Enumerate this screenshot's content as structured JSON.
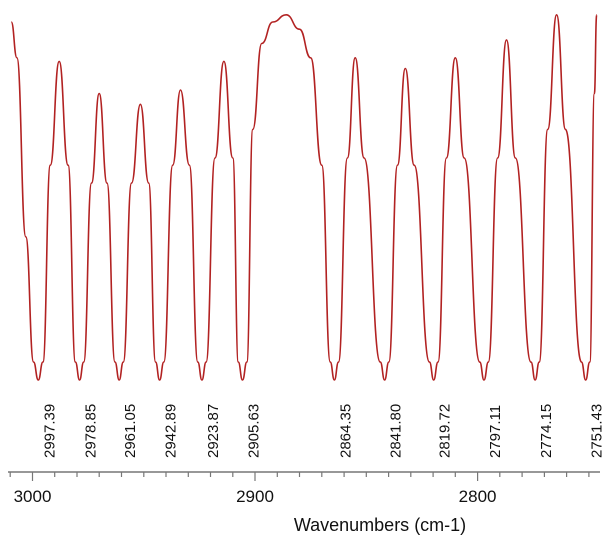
{
  "chart_data": {
    "type": "line",
    "title": "",
    "xlabel": "Wavenumbers (cm-1)",
    "ylabel": "",
    "xlim": [
      3011,
      2745
    ],
    "x_reversed": true,
    "grid": false,
    "legend": "none",
    "line_color": "#b22222",
    "x_ticks": [
      {
        "value": 3000,
        "label": "3000"
      },
      {
        "value": 2900,
        "label": "2900"
      },
      {
        "value": 2800,
        "label": "2800"
      }
    ],
    "peaks": [
      {
        "x": 2997.39,
        "label": "2997.39"
      },
      {
        "x": 2978.85,
        "label": "2978.85"
      },
      {
        "x": 2961.05,
        "label": "2961.05"
      },
      {
        "x": 2942.89,
        "label": "2942.89"
      },
      {
        "x": 2923.87,
        "label": "2923.87"
      },
      {
        "x": 2905.63,
        "label": "2905.63"
      },
      {
        "x": 2864.35,
        "label": "2864.35"
      },
      {
        "x": 2841.8,
        "label": "2841.80"
      },
      {
        "x": 2819.72,
        "label": "2819.72"
      },
      {
        "x": 2797.11,
        "label": "2797.11"
      },
      {
        "x": 2774.15,
        "label": "2774.15"
      },
      {
        "x": 2751.43,
        "label": "2751.43"
      }
    ],
    "series": [
      {
        "name": "",
        "points": [
          {
            "x": 3009.5,
            "y": 1.0
          },
          {
            "x": 3007.0,
            "y": 0.9
          },
          {
            "x": 3003.0,
            "y": 0.4
          },
          {
            "x": 2999.5,
            "y": 0.05
          },
          {
            "x": 2997.4,
            "y": 0.0
          },
          {
            "x": 2995.3,
            "y": 0.05
          },
          {
            "x": 2992.0,
            "y": 0.6
          },
          {
            "x": 2988.0,
            "y": 0.89
          },
          {
            "x": 2984.0,
            "y": 0.6
          },
          {
            "x": 2980.7,
            "y": 0.05
          },
          {
            "x": 2978.85,
            "y": 0.0
          },
          {
            "x": 2977.0,
            "y": 0.05
          },
          {
            "x": 2973.5,
            "y": 0.55
          },
          {
            "x": 2970.0,
            "y": 0.8
          },
          {
            "x": 2966.5,
            "y": 0.55
          },
          {
            "x": 2962.9,
            "y": 0.05
          },
          {
            "x": 2961.05,
            "y": 0.0
          },
          {
            "x": 2959.2,
            "y": 0.05
          },
          {
            "x": 2955.5,
            "y": 0.55
          },
          {
            "x": 2951.5,
            "y": 0.77
          },
          {
            "x": 2947.8,
            "y": 0.55
          },
          {
            "x": 2944.7,
            "y": 0.05
          },
          {
            "x": 2942.89,
            "y": 0.0
          },
          {
            "x": 2941.0,
            "y": 0.05
          },
          {
            "x": 2937.0,
            "y": 0.6
          },
          {
            "x": 2933.5,
            "y": 0.81
          },
          {
            "x": 2929.5,
            "y": 0.6
          },
          {
            "x": 2925.7,
            "y": 0.05
          },
          {
            "x": 2923.87,
            "y": 0.0
          },
          {
            "x": 2922.0,
            "y": 0.05
          },
          {
            "x": 2918.0,
            "y": 0.62
          },
          {
            "x": 2914.0,
            "y": 0.89
          },
          {
            "x": 2910.0,
            "y": 0.62
          },
          {
            "x": 2907.5,
            "y": 0.05
          },
          {
            "x": 2905.63,
            "y": 0.0
          },
          {
            "x": 2903.7,
            "y": 0.05
          },
          {
            "x": 2901.0,
            "y": 0.7
          },
          {
            "x": 2897.0,
            "y": 0.94
          },
          {
            "x": 2892.0,
            "y": 1.0
          },
          {
            "x": 2886.0,
            "y": 1.02
          },
          {
            "x": 2880.0,
            "y": 0.98
          },
          {
            "x": 2875.0,
            "y": 0.9
          },
          {
            "x": 2870.0,
            "y": 0.6
          },
          {
            "x": 2866.2,
            "y": 0.05
          },
          {
            "x": 2864.35,
            "y": 0.0
          },
          {
            "x": 2862.5,
            "y": 0.05
          },
          {
            "x": 2858.5,
            "y": 0.62
          },
          {
            "x": 2855.0,
            "y": 0.9
          },
          {
            "x": 2851.0,
            "y": 0.62
          },
          {
            "x": 2843.7,
            "y": 0.05
          },
          {
            "x": 2841.8,
            "y": 0.0
          },
          {
            "x": 2839.9,
            "y": 0.05
          },
          {
            "x": 2836.0,
            "y": 0.6
          },
          {
            "x": 2832.5,
            "y": 0.87
          },
          {
            "x": 2828.5,
            "y": 0.6
          },
          {
            "x": 2821.6,
            "y": 0.05
          },
          {
            "x": 2819.72,
            "y": 0.0
          },
          {
            "x": 2817.8,
            "y": 0.05
          },
          {
            "x": 2814.0,
            "y": 0.62
          },
          {
            "x": 2810.0,
            "y": 0.9
          },
          {
            "x": 2806.0,
            "y": 0.62
          },
          {
            "x": 2799.0,
            "y": 0.05
          },
          {
            "x": 2797.11,
            "y": 0.0
          },
          {
            "x": 2795.2,
            "y": 0.05
          },
          {
            "x": 2791.0,
            "y": 0.62
          },
          {
            "x": 2787.0,
            "y": 0.95
          },
          {
            "x": 2783.0,
            "y": 0.62
          },
          {
            "x": 2776.0,
            "y": 0.05
          },
          {
            "x": 2774.15,
            "y": 0.0
          },
          {
            "x": 2772.3,
            "y": 0.05
          },
          {
            "x": 2768.5,
            "y": 0.7
          },
          {
            "x": 2764.5,
            "y": 1.02
          },
          {
            "x": 2760.5,
            "y": 0.7
          },
          {
            "x": 2753.3,
            "y": 0.05
          },
          {
            "x": 2751.43,
            "y": 0.0
          },
          {
            "x": 2749.6,
            "y": 0.05
          },
          {
            "x": 2747.5,
            "y": 0.8
          },
          {
            "x": 2746.5,
            "y": 1.02
          }
        ]
      }
    ]
  }
}
